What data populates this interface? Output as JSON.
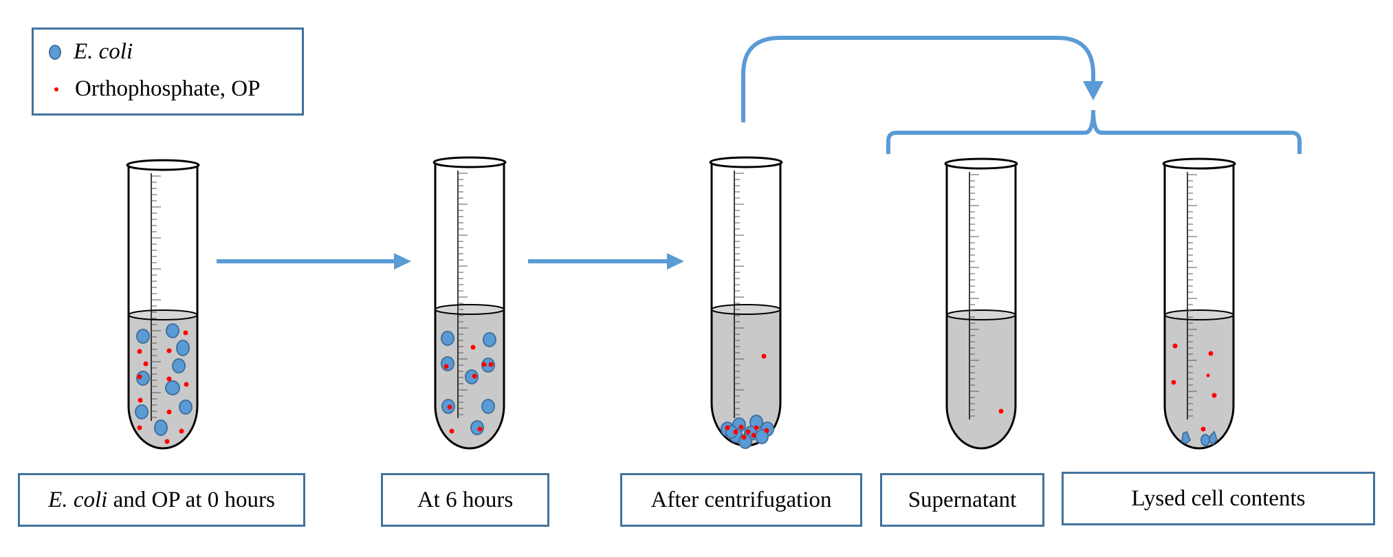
{
  "legend": {
    "ecoli_label": "E. coli",
    "op_label": "Orthophosphate, OP"
  },
  "captions": {
    "tube1_italic": "E. coli",
    "tube1_rest": " and OP at 0 hours",
    "tube2": "At 6 hours",
    "tube3": "After centrifugation",
    "tube4": "Supernatant",
    "tube5": "Lysed cell contents"
  },
  "colors": {
    "ecoli_fill": "#5b9bd5",
    "ecoli_stroke": "#41719c",
    "orthophosphate": "#ff0000",
    "liquid": "#c9c9c9",
    "arrow": "#5b9bd5",
    "box_border": "#41719c"
  }
}
